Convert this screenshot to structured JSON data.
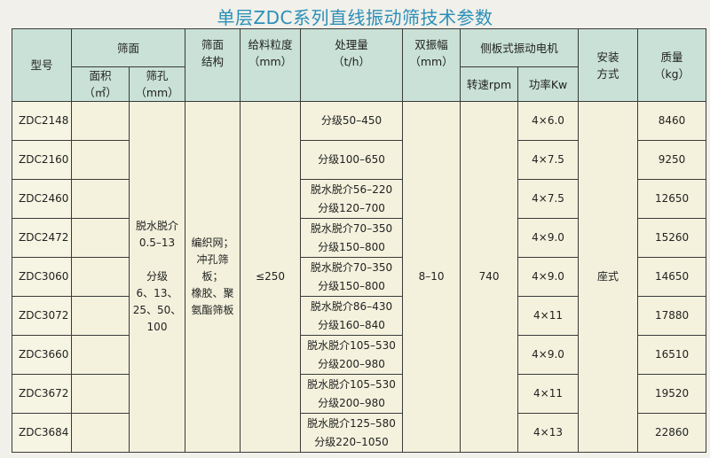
{
  "title": "单层ZDC系列直线振动筛技术参数",
  "headers": {
    "model": "型号",
    "screen_surface": "筛面",
    "area": "面积\n（㎡）",
    "aperture": "筛孔\n（mm）",
    "structure": "筛面\n结构",
    "feed_size": "给料粒度\n（mm）",
    "capacity": "处理量\n（t/h）",
    "amplitude": "双振幅\n（mm）",
    "motor": "侧板式振动电机",
    "speed": "转速rpm",
    "power": "功率Kw",
    "mounting": "安装\n方式",
    "mass": "质量\n（kg）"
  },
  "merged": {
    "aperture": "脱水脱介\n0.5–13\n\n分级\n6、13、\n25、50、\n100",
    "structure": "编织网；\n冲孔筛\n板；\n橡胶、聚\n氨酯筛板",
    "feed_size": "≤250",
    "amplitude": "8–10",
    "speed": "740",
    "mounting": "座式"
  },
  "rows": [
    {
      "model": "ZDC2148",
      "area": "",
      "capacity": "分级50–450",
      "power": "4×6.0",
      "mass": "8460"
    },
    {
      "model": "ZDC2160",
      "area": "",
      "capacity": "分级100–650",
      "power": "4×7.5",
      "mass": "9250"
    },
    {
      "model": "ZDC2460",
      "area": "",
      "capacity": "脱水脱介56–220\n分级120–700",
      "power": "4×7.5",
      "mass": "12650"
    },
    {
      "model": "ZDC2472",
      "area": "",
      "capacity": "脱水脱介70–350\n分级150–800",
      "power": "4×9.0",
      "mass": "15260"
    },
    {
      "model": "ZDC3060",
      "area": "",
      "capacity": "脱水脱介70–350\n分级150–800",
      "power": "4×9.0",
      "mass": "14650"
    },
    {
      "model": "ZDC3072",
      "area": "",
      "capacity": "脱水脱介86–430\n分级160–840",
      "power": "4×11",
      "mass": "17880"
    },
    {
      "model": "ZDC3660",
      "area": "",
      "capacity": "脱水脱介105–530\n分级200–980",
      "power": "4×9.0",
      "mass": "16510"
    },
    {
      "model": "ZDC3672",
      "area": "",
      "capacity": "脱水脱介105–530\n分级200–980",
      "power": "4×11",
      "mass": "19520"
    },
    {
      "model": "ZDC3684",
      "area": "",
      "capacity": "脱水脱介125–580\n分级220–1050",
      "power": "4×13",
      "mass": "22860"
    }
  ],
  "colors": {
    "title": "#2a8fb8",
    "header_bg": "#c9e1d6",
    "body_bg": "#f4f2dd"
  }
}
